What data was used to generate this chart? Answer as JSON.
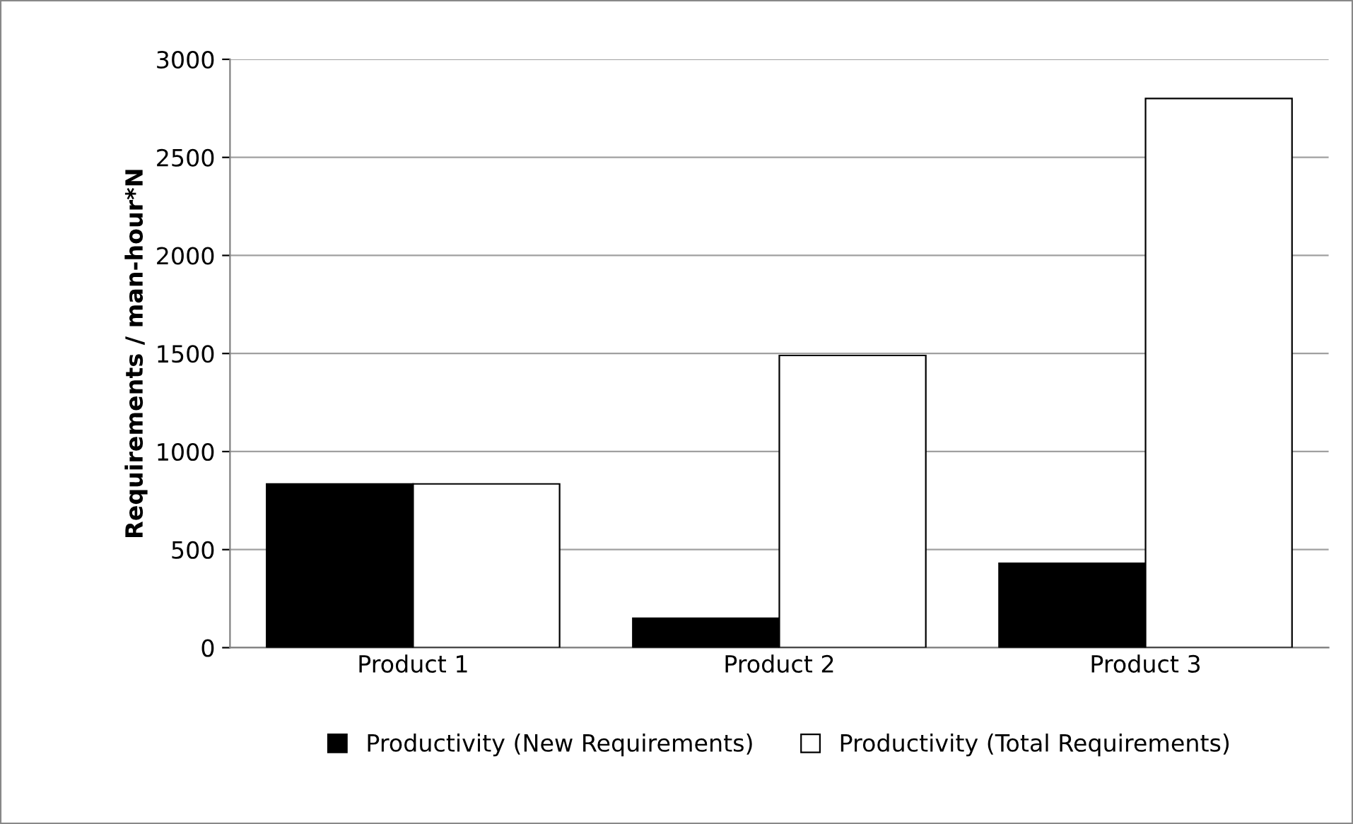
{
  "chart_data": {
    "type": "bar",
    "ylabel": "Requirements / man-hour*N",
    "categories": [
      "Product 1",
      "Product 2",
      "Product 3"
    ],
    "series": [
      {
        "name": "Productivity (New Requirements)",
        "color": "#000000",
        "values": [
          835,
          150,
          430
        ]
      },
      {
        "name": "Productivity (Total Requirements)",
        "color": "#ffffff",
        "values": [
          835,
          1490,
          2800
        ]
      }
    ],
    "ylim": [
      0,
      3000
    ],
    "yticks": [
      0,
      500,
      1000,
      1500,
      2000,
      2500,
      3000
    ],
    "grid": "y",
    "legend": "bottom"
  }
}
